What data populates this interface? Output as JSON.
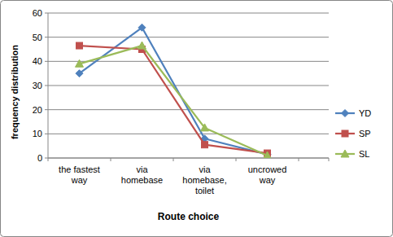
{
  "chart_data": {
    "type": "line",
    "x_label": "Route choice",
    "y_label": "frequency distribution",
    "categories": [
      "the fastest way",
      "via homebase",
      "via homebase, toilet",
      "uncrowed way"
    ],
    "series": [
      {
        "name": "YD",
        "color": "#4f81bd",
        "marker": "diamond",
        "values": [
          35,
          54,
          8,
          1.5
        ]
      },
      {
        "name": "SP",
        "color": "#c0504d",
        "marker": "square",
        "values": [
          46.5,
          45,
          5.5,
          2
        ]
      },
      {
        "name": "SL",
        "color": "#9bbb59",
        "marker": "triangle",
        "values": [
          39,
          46.5,
          12.5,
          1
        ]
      }
    ],
    "ylim": [
      0,
      60
    ],
    "yticks": [
      0,
      10,
      20,
      30,
      40,
      50,
      60
    ],
    "grid": true,
    "legend": "right"
  }
}
